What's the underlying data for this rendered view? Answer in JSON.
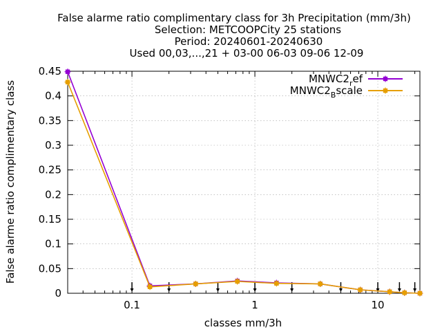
{
  "chart_data": {
    "type": "line",
    "title": [
      "False alarme ratio complimentary class  for 3h Precipitation (mm/3h)",
      "Selection: METCOOPCity      25 stations",
      "Period: 20240601-20240630",
      "Used 00,03,...,21 + 03-00 06-03 09-06 12-09"
    ],
    "xlabel": "classes mm/3h",
    "ylabel": "False alarme ratio complimentary class",
    "x_scale": "log",
    "xlim": [
      0.03,
      22
    ],
    "ylim": [
      0,
      0.45
    ],
    "x_ticks": [
      {
        "value": 0.1,
        "label": "0.1"
      },
      {
        "value": 1,
        "label": "1"
      },
      {
        "value": 10,
        "label": "10"
      }
    ],
    "y_ticks": [
      {
        "value": 0,
        "label": "0"
      },
      {
        "value": 0.05,
        "label": "0.05"
      },
      {
        "value": 0.1,
        "label": "0.1"
      },
      {
        "value": 0.15,
        "label": "0.15"
      },
      {
        "value": 0.2,
        "label": "0.2"
      },
      {
        "value": 0.25,
        "label": "0.25"
      },
      {
        "value": 0.3,
        "label": "0.3"
      },
      {
        "value": 0.35,
        "label": "0.35"
      },
      {
        "value": 0.4,
        "label": "0.4"
      },
      {
        "value": 0.45,
        "label": "0.45"
      }
    ],
    "arrow_markers_x": [
      0.1,
      0.2,
      0.5,
      1,
      2,
      5,
      10,
      15,
      20
    ],
    "legend_position": "top-right",
    "series": [
      {
        "name_main": "MNWC2",
        "name_sub": "r",
        "name_rest": "ef",
        "color": "#9400d3",
        "x": [
          0.03,
          0.14,
          0.33,
          0.72,
          1.5,
          3.4,
          7.2,
          12.5,
          16.5,
          22
        ],
        "y": [
          0.449,
          0.015,
          0.019,
          0.025,
          0.021,
          0.019,
          0.007,
          0.003,
          0.001,
          0.0
        ]
      },
      {
        "name_main": "MNWC2",
        "name_sub": "B",
        "name_rest": "scale",
        "color": "#e69f00",
        "x": [
          0.03,
          0.14,
          0.33,
          0.72,
          1.5,
          3.4,
          7.2,
          12.5,
          16.5,
          22
        ],
        "y": [
          0.428,
          0.013,
          0.019,
          0.024,
          0.02,
          0.019,
          0.007,
          0.003,
          0.001,
          0.0
        ]
      }
    ]
  }
}
